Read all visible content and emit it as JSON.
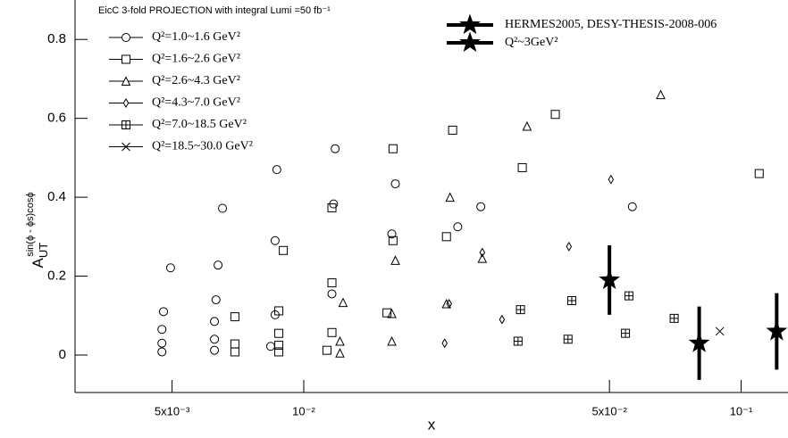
{
  "chart_data": {
    "type": "scatter",
    "legend_title": "EicC 3-fold PROJECTION with integral Lumi =50 fb⁻¹",
    "x_label": "x",
    "y_label": "A",
    "y_label_sub": "UT",
    "y_label_sup": "sin(ϕ - ϕs)cosϕ",
    "log_x": true,
    "xlim": [
      0.003,
      0.128
    ],
    "ylim": [
      -0.095,
      0.9
    ],
    "xticks": [
      {
        "value": 0.005,
        "label": "5x10⁻³"
      },
      {
        "value": 0.01,
        "label": "10⁻²"
      },
      {
        "value": 0.05,
        "label": "5x10⁻²"
      },
      {
        "value": 0.1,
        "label": "10⁻¹"
      }
    ],
    "yticks": [
      0,
      0.2,
      0.4,
      0.6,
      0.8
    ],
    "series": [
      {
        "name": "Q²=1.0~1.6 GeV²",
        "marker": "circle",
        "color": "#000000",
        "x": [
          0.00474,
          0.00474,
          0.00474,
          0.00478,
          0.00496,
          0.00625,
          0.00625,
          0.00625,
          0.0063,
          0.00637,
          0.00652,
          0.0084,
          0.0086,
          0.0086,
          0.00868,
          0.0116,
          0.0117,
          0.0118,
          0.0159,
          0.0162,
          0.0225,
          0.0254,
          0.0564
        ],
        "values": [
          0.008,
          0.03,
          0.065,
          0.11,
          0.221,
          0.012,
          0.04,
          0.085,
          0.14,
          0.228,
          0.372,
          0.022,
          0.102,
          0.29,
          0.47,
          0.155,
          0.383,
          0.523,
          0.307,
          0.434,
          0.325,
          0.376,
          0.376
        ]
      },
      {
        "name": "Q²=1.6~2.6 GeV²",
        "marker": "square",
        "color": "#000000",
        "x": [
          0.00696,
          0.00696,
          0.00696,
          0.00877,
          0.00877,
          0.00877,
          0.00877,
          0.00898,
          0.0113,
          0.0116,
          0.0116,
          0.0116,
          0.0155,
          0.016,
          0.016,
          0.0212,
          0.0219,
          0.0316,
          0.0376,
          0.11
        ],
        "values": [
          0.008,
          0.028,
          0.097,
          0.008,
          0.025,
          0.055,
          0.112,
          0.265,
          0.012,
          0.057,
          0.183,
          0.373,
          0.107,
          0.29,
          0.523,
          0.3,
          0.57,
          0.475,
          0.61,
          0.46
        ]
      },
      {
        "name": "Q²=2.6~4.3 GeV²",
        "marker": "triangle",
        "color": "#000000",
        "x": [
          0.0121,
          0.0121,
          0.0123,
          0.0159,
          0.0159,
          0.0162,
          0.0212,
          0.0216,
          0.0256,
          0.0324,
          0.0655
        ],
        "values": [
          0.005,
          0.035,
          0.133,
          0.035,
          0.105,
          0.24,
          0.13,
          0.4,
          0.245,
          0.58,
          0.66
        ]
      },
      {
        "name": "Q²=4.3~7.0 GeV²",
        "marker": "diamond",
        "color": "#000000",
        "x": [
          0.021,
          0.0215,
          0.0284,
          0.0256,
          0.0404,
          0.0504
        ],
        "values": [
          0.03,
          0.13,
          0.09,
          0.26,
          0.275,
          0.445
        ]
      },
      {
        "name": "Q²=7.0~18.5 GeV²",
        "marker": "crossed-square",
        "color": "#000000",
        "x": [
          0.0309,
          0.0313,
          0.0402,
          0.041,
          0.0544,
          0.0554,
          0.0703
        ],
        "values": [
          0.035,
          0.115,
          0.04,
          0.138,
          0.055,
          0.15,
          0.093
        ]
      },
      {
        "name": "Q²=18.5~30.0 GeV²",
        "marker": "x",
        "color": "#000000",
        "x": [
          0.0894
        ],
        "values": [
          0.06
        ]
      },
      {
        "name": "HERMES2005, DESY-THESIS-2008-006",
        "legend_note": "Q²~3GeV²",
        "marker": "star",
        "color": "#000000",
        "x": [
          0.05,
          0.0802,
          0.1206
        ],
        "values": [
          0.19,
          0.03,
          0.06
        ],
        "errors": [
          0.088,
          0.093,
          0.097
        ]
      }
    ]
  }
}
